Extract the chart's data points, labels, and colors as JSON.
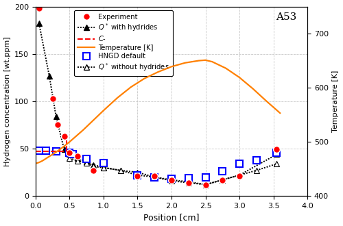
{
  "title": "A53",
  "xlabel": "Position [cm]",
  "ylabel_left": "Hydrogen concentration [wt.ppm]",
  "ylabel_right": "Temperature [K]",
  "xlim": [
    0.0,
    4.0
  ],
  "ylim_left": [
    0,
    200
  ],
  "ylim_right": [
    400,
    750
  ],
  "yticks_left": [
    0,
    50,
    100,
    150,
    200
  ],
  "yticks_right": [
    400,
    500,
    600,
    700
  ],
  "xticks": [
    0.0,
    0.5,
    1.0,
    1.5,
    2.0,
    2.5,
    3.0,
    3.5,
    4.0
  ],
  "experiment_x": [
    0.05,
    0.25,
    0.32,
    0.42,
    0.5,
    0.62,
    0.85,
    1.5,
    1.75,
    2.0,
    2.25,
    2.5,
    2.75,
    3.0,
    3.55
  ],
  "experiment_y": [
    198,
    103,
    75,
    63,
    46,
    42,
    27,
    21,
    21,
    17,
    14,
    12,
    17,
    21,
    49
  ],
  "hngd_x": [
    0.05,
    0.15,
    0.3,
    0.5,
    0.55,
    0.75,
    1.0,
    1.5,
    1.75,
    2.0,
    2.25,
    2.5,
    2.75,
    3.0,
    3.25,
    3.55
  ],
  "hngd_y": [
    48,
    48,
    47,
    46,
    44,
    39,
    35,
    22,
    20,
    18,
    19,
    20,
    26,
    34,
    38,
    46
  ],
  "q_with_hydrides_x": [
    0.05,
    0.2,
    0.3,
    0.42,
    0.5,
    0.62,
    0.75,
    0.85,
    1.0,
    1.25,
    1.5,
    1.75,
    2.0,
    2.25,
    2.5,
    2.75,
    3.0,
    3.55
  ],
  "q_with_hydrides_y": [
    182,
    127,
    84,
    49,
    44,
    40,
    36,
    33,
    30,
    27,
    22,
    20,
    16,
    14,
    12,
    17,
    22,
    44
  ],
  "q_without_hydrides_x": [
    0.5,
    0.62,
    0.75,
    0.85,
    1.0,
    1.25,
    1.5,
    1.75,
    2.0,
    2.25,
    2.5,
    2.75,
    3.0,
    3.25,
    3.55
  ],
  "q_without_hydrides_y": [
    40,
    37,
    35,
    31,
    30,
    27,
    25,
    20,
    17,
    15,
    12,
    17,
    22,
    27,
    34
  ],
  "temperature_x": [
    0.0,
    0.05,
    0.1,
    0.2,
    0.3,
    0.4,
    0.5,
    0.6,
    0.7,
    0.8,
    0.9,
    1.0,
    1.2,
    1.4,
    1.6,
    1.8,
    2.0,
    2.2,
    2.4,
    2.5,
    2.6,
    2.8,
    3.0,
    3.2,
    3.4,
    3.6
  ],
  "temperature_y": [
    460,
    462,
    465,
    473,
    481,
    490,
    500,
    511,
    522,
    534,
    546,
    558,
    581,
    601,
    617,
    629,
    639,
    646,
    650,
    651,
    648,
    636,
    619,
    598,
    575,
    553
  ],
  "c_minus_x": 0.45,
  "c_minus_conc": 47,
  "c_minus_temp_K": 503,
  "exp_color": "#ff0000",
  "hngd_color": "#0000ff",
  "q_with_color": "#000000",
  "q_without_color": "#000000",
  "temp_color": "#ff8000",
  "c_minus_color": "#ff0000",
  "background_color": "#ffffff",
  "grid_color": "#c8c8c8"
}
